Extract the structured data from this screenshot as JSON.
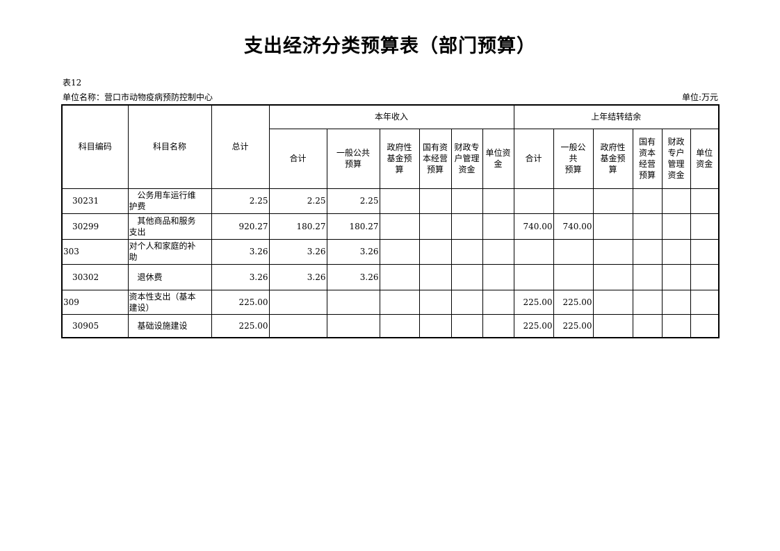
{
  "title": "支出经济分类预算表（部门预算）",
  "table_no": "表12",
  "unit_name": "单位名称：营口市动物疫病预防控制中心",
  "unit": "单位:万元",
  "headers": {
    "code": "科目编码",
    "name": "科目名称",
    "total": "总计",
    "current_year": "本年收入",
    "carry_over": "上年结转结余",
    "current_cols": [
      "合计",
      "一般公共\n预算",
      "政府性\n基金预\n算",
      "国有资\n本经营\n预算",
      "财政专\n户管理\n资金",
      "单位资\n金"
    ],
    "carry_cols": [
      "合计",
      "一般公\n共\n预算",
      "政府性\n基金预\n算",
      "国有\n资本\n经营\n预算",
      "财政\n专户\n管理\n资金",
      "单位\n资金"
    ]
  },
  "rows": [
    {
      "code": "30231",
      "name": "　公务用车运行维\n护费",
      "indent": true,
      "values": [
        "2.25",
        "2.25",
        "2.25",
        "",
        "",
        "",
        "",
        "",
        "",
        "",
        "",
        "",
        ""
      ]
    },
    {
      "code": "30299",
      "name": "　其他商品和服务\n支出",
      "indent": true,
      "values": [
        "920.27",
        "180.27",
        "180.27",
        "",
        "",
        "",
        "",
        "740.00",
        "740.00",
        "",
        "",
        "",
        ""
      ]
    },
    {
      "code": "303",
      "name": "对个人和家庭的补\n助",
      "indent": false,
      "values": [
        "3.26",
        "3.26",
        "3.26",
        "",
        "",
        "",
        "",
        "",
        "",
        "",
        "",
        "",
        ""
      ]
    },
    {
      "code": "30302",
      "name": "　退休费",
      "indent": true,
      "values": [
        "3.26",
        "3.26",
        "3.26",
        "",
        "",
        "",
        "",
        "",
        "",
        "",
        "",
        "",
        ""
      ]
    },
    {
      "code": "309",
      "name": "资本性支出（基本\n建设）",
      "indent": false,
      "values": [
        "225.00",
        "",
        "",
        "",
        "",
        "",
        "",
        "225.00",
        "225.00",
        "",
        "",
        "",
        ""
      ]
    },
    {
      "code": "30905",
      "name": "　基础设施建设",
      "indent": true,
      "values": [
        "225.00",
        "",
        "",
        "",
        "",
        "",
        "",
        "225.00",
        "225.00",
        "",
        "",
        "",
        ""
      ]
    }
  ]
}
